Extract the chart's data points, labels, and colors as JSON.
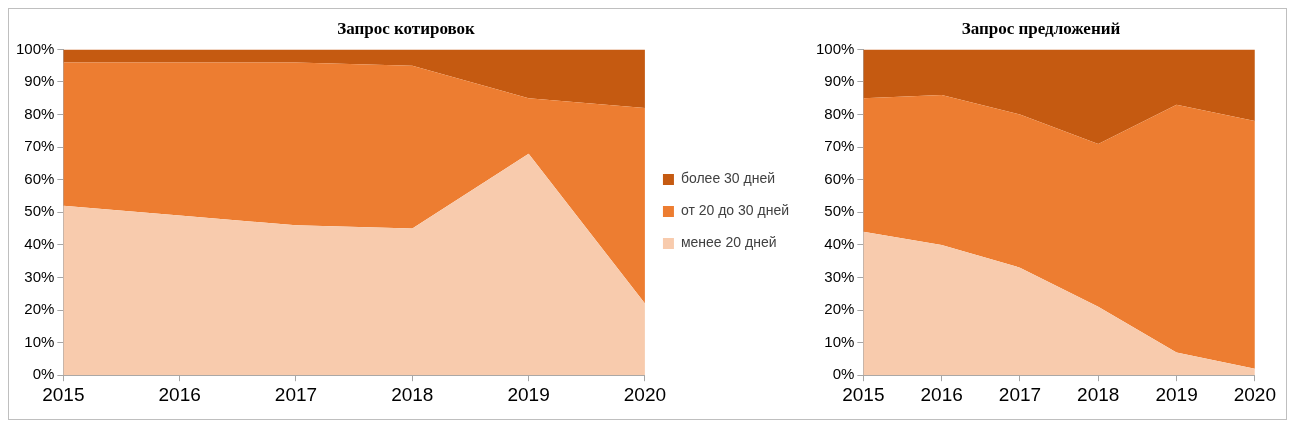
{
  "chart_data": [
    {
      "type": "area",
      "title": "Запрос котировок",
      "categories": [
        "2015",
        "2016",
        "2017",
        "2018",
        "2019",
        "2020"
      ],
      "stacked": true,
      "legend": "right",
      "grid": false,
      "ylim": [
        0,
        100
      ],
      "yticks": [
        {
          "value": 0,
          "label": "0%"
        },
        {
          "value": 10,
          "label": "10%"
        },
        {
          "value": 20,
          "label": "20%"
        },
        {
          "value": 30,
          "label": "30%"
        },
        {
          "value": 40,
          "label": "40%"
        },
        {
          "value": 50,
          "label": "50%"
        },
        {
          "value": 60,
          "label": "60%"
        },
        {
          "value": 70,
          "label": "70%"
        },
        {
          "value": 80,
          "label": "80%"
        },
        {
          "value": 90,
          "label": "90%"
        },
        {
          "value": 100,
          "label": "100%"
        }
      ],
      "series": [
        {
          "name": "менее 20 дней",
          "color": "#f8cbad",
          "values": [
            52,
            49,
            46,
            45,
            68,
            22
          ]
        },
        {
          "name": "от 20 до 30 дней",
          "color": "#ed7d31",
          "values": [
            44,
            47,
            50,
            50,
            17,
            60
          ]
        },
        {
          "name": "более 30 дней",
          "color": "#c55a11",
          "values": [
            4,
            4,
            4,
            5,
            15,
            18
          ]
        }
      ]
    },
    {
      "type": "area",
      "title": "Запрос предложений",
      "categories": [
        "2015",
        "2016",
        "2017",
        "2018",
        "2019",
        "2020"
      ],
      "stacked": true,
      "grid": false,
      "ylim": [
        0,
        100
      ],
      "yticks": [
        {
          "value": 0,
          "label": "0%"
        },
        {
          "value": 10,
          "label": "10%"
        },
        {
          "value": 20,
          "label": "20%"
        },
        {
          "value": 30,
          "label": "30%"
        },
        {
          "value": 40,
          "label": "40%"
        },
        {
          "value": 50,
          "label": "50%"
        },
        {
          "value": 60,
          "label": "60%"
        },
        {
          "value": 70,
          "label": "70%"
        },
        {
          "value": 80,
          "label": "80%"
        },
        {
          "value": 90,
          "label": "90%"
        },
        {
          "value": 100,
          "label": "100%"
        }
      ],
      "series": [
        {
          "color": "#f8cbad",
          "values": [
            44,
            40,
            33,
            21,
            7,
            2
          ]
        },
        {
          "color": "#ed7d31",
          "values": [
            41,
            46,
            47,
            50,
            76,
            76
          ]
        },
        {
          "color": "#c55a11",
          "values": [
            15,
            14,
            20,
            29,
            17,
            22
          ]
        }
      ]
    }
  ]
}
